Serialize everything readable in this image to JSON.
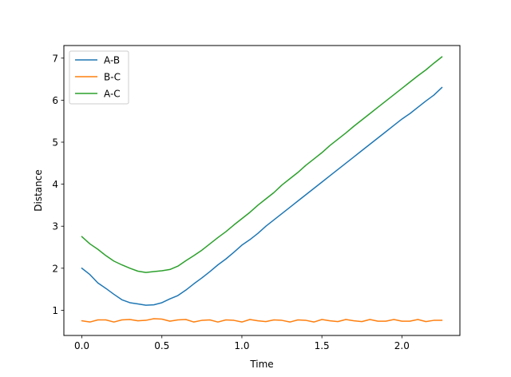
{
  "chart_data": {
    "type": "line",
    "title": "",
    "xlabel": "Time",
    "ylabel": "Distance",
    "xlim": [
      -0.1125,
      2.3625
    ],
    "ylim": [
      0.4,
      7.3
    ],
    "xticks": [
      0.0,
      0.5,
      1.0,
      1.5,
      2.0
    ],
    "xtick_labels": [
      "0.0",
      "0.5",
      "1.0",
      "1.5",
      "2.0"
    ],
    "yticks": [
      1,
      2,
      3,
      4,
      5,
      6,
      7
    ],
    "ytick_labels": [
      "1",
      "2",
      "3",
      "4",
      "5",
      "6",
      "7"
    ],
    "grid": false,
    "legend_position": "top-left",
    "x": [
      0.0,
      0.05,
      0.1,
      0.15,
      0.2,
      0.25,
      0.3,
      0.35,
      0.4,
      0.45,
      0.5,
      0.55,
      0.6,
      0.65,
      0.7,
      0.75,
      0.8,
      0.85,
      0.9,
      0.95,
      1.0,
      1.05,
      1.1,
      1.15,
      1.2,
      1.25,
      1.3,
      1.35,
      1.4,
      1.45,
      1.5,
      1.55,
      1.6,
      1.65,
      1.7,
      1.75,
      1.8,
      1.85,
      1.9,
      1.95,
      2.0,
      2.05,
      2.1,
      2.15,
      2.2,
      2.25
    ],
    "series": [
      {
        "name": "A-B",
        "color": "#1f77b4",
        "values": [
          2.0,
          1.85,
          1.65,
          1.52,
          1.38,
          1.25,
          1.18,
          1.15,
          1.12,
          1.13,
          1.18,
          1.27,
          1.35,
          1.48,
          1.63,
          1.77,
          1.92,
          2.08,
          2.22,
          2.38,
          2.55,
          2.68,
          2.83,
          3.0,
          3.15,
          3.3,
          3.45,
          3.6,
          3.75,
          3.9,
          4.05,
          4.2,
          4.35,
          4.5,
          4.65,
          4.8,
          4.95,
          5.1,
          5.25,
          5.4,
          5.55,
          5.68,
          5.83,
          5.98,
          6.12,
          6.3
        ]
      },
      {
        "name": "B-C",
        "color": "#ff7f0e",
        "values": [
          0.75,
          0.72,
          0.77,
          0.77,
          0.72,
          0.77,
          0.78,
          0.75,
          0.76,
          0.8,
          0.79,
          0.74,
          0.77,
          0.78,
          0.72,
          0.76,
          0.77,
          0.72,
          0.77,
          0.76,
          0.72,
          0.78,
          0.75,
          0.73,
          0.77,
          0.76,
          0.72,
          0.77,
          0.76,
          0.72,
          0.78,
          0.75,
          0.73,
          0.78,
          0.75,
          0.73,
          0.78,
          0.74,
          0.74,
          0.78,
          0.74,
          0.74,
          0.78,
          0.73,
          0.76,
          0.76
        ]
      },
      {
        "name": "A-C",
        "color": "#2ca02c",
        "values": [
          2.75,
          2.58,
          2.45,
          2.3,
          2.17,
          2.08,
          2.0,
          1.93,
          1.9,
          1.92,
          1.94,
          1.97,
          2.05,
          2.18,
          2.3,
          2.43,
          2.58,
          2.73,
          2.87,
          3.03,
          3.18,
          3.33,
          3.5,
          3.65,
          3.8,
          3.98,
          4.13,
          4.28,
          4.45,
          4.6,
          4.75,
          4.92,
          5.07,
          5.22,
          5.38,
          5.53,
          5.68,
          5.83,
          5.98,
          6.13,
          6.28,
          6.43,
          6.58,
          6.72,
          6.88,
          7.03
        ]
      }
    ]
  }
}
